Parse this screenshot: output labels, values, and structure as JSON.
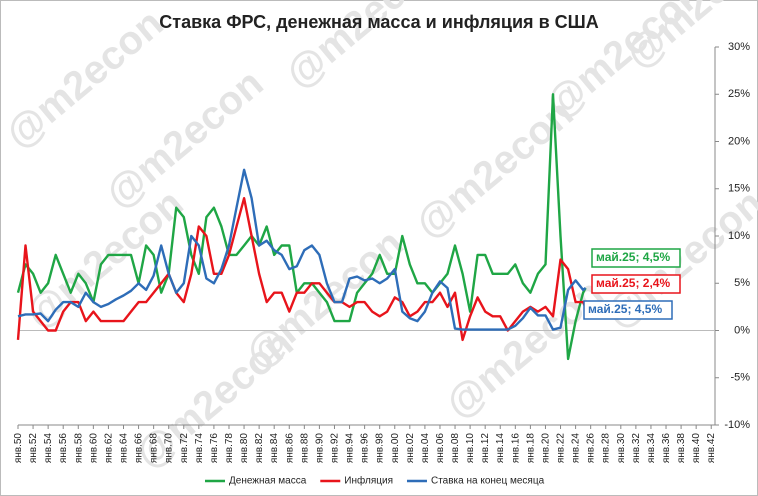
{
  "chart_data": {
    "type": "line",
    "title": "Ставка ФРС, денежная масса и инфляция в США",
    "watermark": "@m2econ",
    "x": [
      1950,
      1951,
      1952,
      1953,
      1954,
      1955,
      1956,
      1957,
      1958,
      1959,
      1960,
      1961,
      1962,
      1963,
      1964,
      1965,
      1966,
      1967,
      1968,
      1969,
      1970,
      1971,
      1972,
      1973,
      1974,
      1975,
      1976,
      1977,
      1978,
      1979,
      1980,
      1981,
      1982,
      1983,
      1984,
      1985,
      1986,
      1987,
      1988,
      1989,
      1990,
      1991,
      1992,
      1993,
      1994,
      1995,
      1996,
      1997,
      1998,
      1999,
      2000,
      2001,
      2002,
      2003,
      2004,
      2005,
      2006,
      2007,
      2008,
      2009,
      2010,
      2011,
      2012,
      2013,
      2014,
      2015,
      2016,
      2017,
      2018,
      2019,
      2020,
      2021,
      2022,
      2023,
      2024,
      2025,
      2025.33
    ],
    "xlim": [
      1950,
      2042.5
    ],
    "xticks": [
      {
        "value": 1950,
        "label": "янв.50"
      },
      {
        "value": 1952,
        "label": "янв.52"
      },
      {
        "value": 1954,
        "label": "янв.54"
      },
      {
        "value": 1956,
        "label": "янв.56"
      },
      {
        "value": 1958,
        "label": "янв.58"
      },
      {
        "value": 1960,
        "label": "янв.60"
      },
      {
        "value": 1962,
        "label": "янв.62"
      },
      {
        "value": 1964,
        "label": "янв.64"
      },
      {
        "value": 1966,
        "label": "янв.66"
      },
      {
        "value": 1968,
        "label": "янв.68"
      },
      {
        "value": 1970,
        "label": "янв.70"
      },
      {
        "value": 1972,
        "label": "янв.72"
      },
      {
        "value": 1974,
        "label": "янв.74"
      },
      {
        "value": 1976,
        "label": "янв.76"
      },
      {
        "value": 1978,
        "label": "янв.78"
      },
      {
        "value": 1980,
        "label": "янв.80"
      },
      {
        "value": 1982,
        "label": "янв.82"
      },
      {
        "value": 1984,
        "label": "янв.84"
      },
      {
        "value": 1986,
        "label": "янв.86"
      },
      {
        "value": 1988,
        "label": "янв.88"
      },
      {
        "value": 1990,
        "label": "янв.90"
      },
      {
        "value": 1992,
        "label": "янв.92"
      },
      {
        "value": 1994,
        "label": "янв.94"
      },
      {
        "value": 1996,
        "label": "янв.96"
      },
      {
        "value": 1998,
        "label": "янв.98"
      },
      {
        "value": 2000,
        "label": "янв.00"
      },
      {
        "value": 2002,
        "label": "янв.02"
      },
      {
        "value": 2004,
        "label": "янв.04"
      },
      {
        "value": 2006,
        "label": "янв.06"
      },
      {
        "value": 2008,
        "label": "янв.08"
      },
      {
        "value": 2010,
        "label": "янв.10"
      },
      {
        "value": 2012,
        "label": "янв.12"
      },
      {
        "value": 2014,
        "label": "янв.14"
      },
      {
        "value": 2016,
        "label": "янв.16"
      },
      {
        "value": 2018,
        "label": "янв.18"
      },
      {
        "value": 2020,
        "label": "янв.20"
      },
      {
        "value": 2022,
        "label": "янв.22"
      },
      {
        "value": 2024,
        "label": "янв.24"
      },
      {
        "value": 2026,
        "label": "янв.26"
      },
      {
        "value": 2028,
        "label": "янв.28"
      },
      {
        "value": 2030,
        "label": "янв.30"
      },
      {
        "value": 2032,
        "label": "янв.32"
      },
      {
        "value": 2034,
        "label": "янв.34"
      },
      {
        "value": 2036,
        "label": "янв.36"
      },
      {
        "value": 2038,
        "label": "янв.38"
      },
      {
        "value": 2040,
        "label": "янв.40"
      },
      {
        "value": 2042,
        "label": "янв.42"
      }
    ],
    "ylim": [
      -10,
      30
    ],
    "yticks": [
      {
        "value": -10,
        "label": "-10%"
      },
      {
        "value": -5,
        "label": "-5%"
      },
      {
        "value": 0,
        "label": "0%"
      },
      {
        "value": 5,
        "label": "5%"
      },
      {
        "value": 10,
        "label": "10%"
      },
      {
        "value": 15,
        "label": "15%"
      },
      {
        "value": 20,
        "label": "20%"
      },
      {
        "value": 25,
        "label": "25%"
      },
      {
        "value": 30,
        "label": "30%"
      }
    ],
    "grid": false,
    "series": [
      {
        "name": "Денежная масса",
        "color": "#1fa645",
        "end_label": "май.25; 4,5%",
        "values": [
          4,
          7,
          6,
          4,
          5,
          8,
          6,
          4,
          6,
          5,
          3,
          7,
          8,
          8,
          8,
          8,
          5,
          9,
          8,
          4,
          6,
          13,
          12,
          8,
          6,
          12,
          13,
          11,
          8,
          8,
          9,
          10,
          9,
          11,
          8,
          9,
          9,
          4,
          5,
          5,
          4,
          3,
          1,
          1,
          1,
          4,
          5,
          6,
          8,
          6,
          6,
          10,
          7,
          5,
          5,
          4,
          5,
          6,
          9,
          6,
          2,
          8,
          8,
          6,
          6,
          6,
          7,
          5,
          4,
          6,
          7,
          25,
          10,
          -3,
          1,
          4,
          4.5
        ]
      },
      {
        "name": "Инфляция",
        "color": "#e8141b",
        "end_label": "май.25; 2,4%",
        "values": [
          -1,
          9,
          2,
          1,
          0,
          0,
          2,
          3,
          3,
          1,
          2,
          1,
          1,
          1,
          1,
          2,
          3,
          3,
          4,
          5,
          6,
          4,
          3,
          6,
          11,
          10,
          6,
          6,
          8,
          11,
          14,
          10,
          6,
          3,
          4,
          4,
          2,
          4,
          4,
          5,
          5,
          4,
          3,
          3,
          2.5,
          3,
          3,
          2,
          1.5,
          2,
          3.5,
          3,
          1.5,
          2,
          3,
          3,
          4,
          2.5,
          4,
          -1,
          1.5,
          3.5,
          2,
          1.5,
          1.5,
          0,
          1,
          2,
          2.5,
          2,
          2.5,
          1.5,
          7.5,
          6.5,
          3,
          3,
          2.4
        ]
      },
      {
        "name": "Ставка на конец месяца",
        "color": "#2e6db8",
        "end_label": "май.25; 4,5%",
        "values": [
          1.5,
          1.7,
          1.7,
          1.8,
          1,
          2.2,
          3,
          3,
          2.5,
          4,
          3,
          2.5,
          2.8,
          3.3,
          3.7,
          4.2,
          5,
          4.3,
          5.8,
          9,
          6,
          4,
          5,
          10,
          9,
          5.5,
          5,
          6.5,
          9,
          13,
          17,
          14,
          9,
          9.5,
          8.5,
          8,
          6.5,
          6.8,
          8.5,
          9,
          8,
          5,
          3,
          3,
          5.5,
          5.7,
          5.3,
          5.5,
          5,
          5.5,
          6.5,
          2,
          1.3,
          1,
          2,
          4,
          5.2,
          4.5,
          0.2,
          0.1,
          0.1,
          0.1,
          0.1,
          0.1,
          0.1,
          0.1,
          0.5,
          1.3,
          2.4,
          1.6,
          1.6,
          0.1,
          0.3,
          4.3,
          5.3,
          4.3,
          4.5
        ]
      }
    ]
  }
}
